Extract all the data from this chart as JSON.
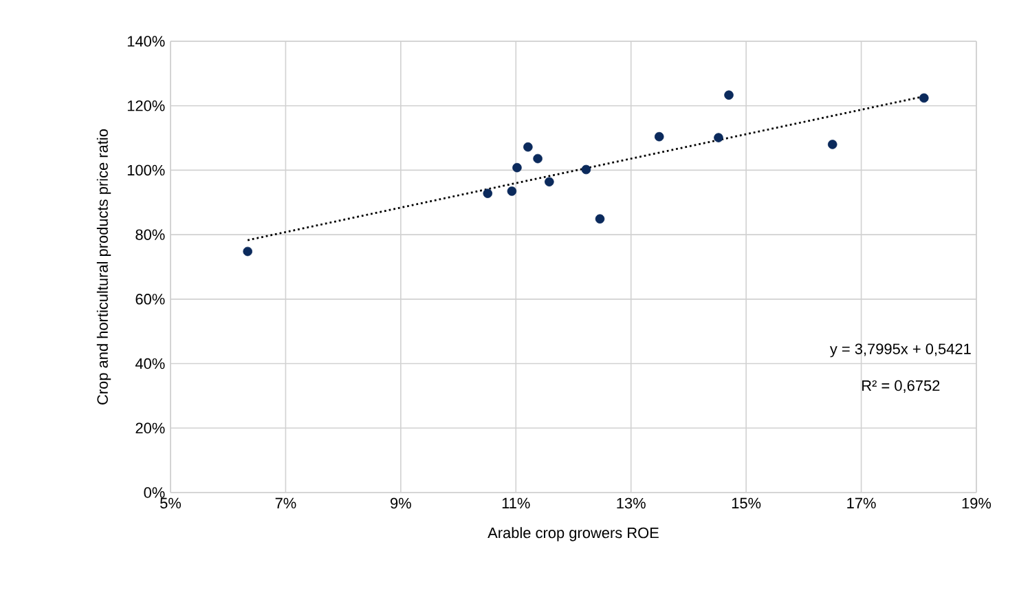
{
  "chart_data": {
    "type": "scatter",
    "xlabel": "Arable crop growers ROE",
    "ylabel": "Crop and horticultural products price ratio",
    "xlim": [
      5,
      19
    ],
    "ylim": [
      0,
      140
    ],
    "xticks": [
      {
        "value": 5,
        "label": "5%"
      },
      {
        "value": 7,
        "label": "7%"
      },
      {
        "value": 9,
        "label": "9%"
      },
      {
        "value": 11,
        "label": "11%"
      },
      {
        "value": 13,
        "label": "13%"
      },
      {
        "value": 15,
        "label": "15%"
      },
      {
        "value": 17,
        "label": "17%"
      },
      {
        "value": 19,
        "label": "19%"
      }
    ],
    "yticks": [
      {
        "value": 0,
        "label": "0%"
      },
      {
        "value": 20,
        "label": "20%"
      },
      {
        "value": 40,
        "label": "40%"
      },
      {
        "value": 60,
        "label": "60%"
      },
      {
        "value": 80,
        "label": "80%"
      },
      {
        "value": 100,
        "label": "100%"
      },
      {
        "value": 120,
        "label": "120%"
      },
      {
        "value": 140,
        "label": "140%"
      }
    ],
    "grid": true,
    "series": [
      {
        "type": "scatter",
        "color": "#0b2a5c",
        "marker": "circle",
        "x": [
          6.34,
          10.51,
          10.93,
          11.02,
          11.21,
          11.38,
          11.58,
          12.22,
          12.46,
          13.49,
          14.52,
          14.7,
          16.5,
          18.09
        ],
        "values": [
          74.8,
          92.8,
          93.5,
          100.8,
          107.2,
          103.6,
          96.4,
          100.2,
          84.9,
          110.4,
          110.1,
          123.3,
          108.0,
          122.4
        ]
      },
      {
        "type": "line",
        "color": "#000000",
        "marker": "none",
        "line_style": "dotted",
        "x": [
          6.34,
          18.09
        ],
        "values": [
          78.3,
          122.9
        ]
      }
    ],
    "annotations": [
      "y = 3,7995x + 0,5421",
      "R² = 0,6752"
    ]
  }
}
